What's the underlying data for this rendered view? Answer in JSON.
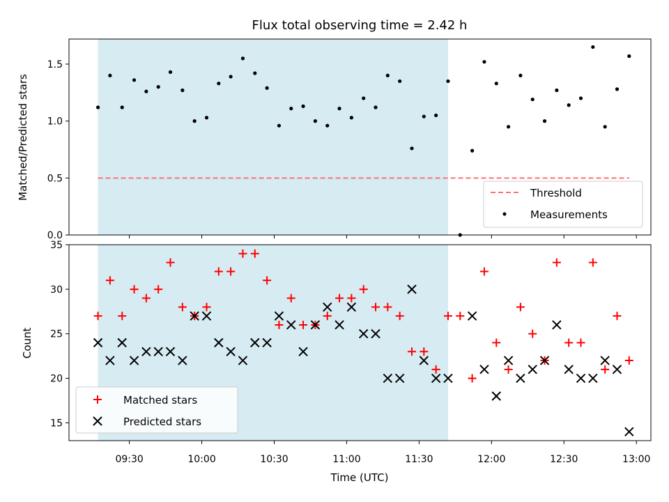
{
  "chart_data": {
    "type": "scatter",
    "title": "Flux total observing time = 2.42 h",
    "xlabel": "Time (UTC)",
    "x_ticks": [
      "09:30",
      "10:00",
      "10:30",
      "11:00",
      "11:30",
      "12:00",
      "12:30",
      "13:00"
    ],
    "top_panel": {
      "ylabel": "Matched/Predicted stars",
      "ylim": [
        0.0,
        1.72
      ],
      "y_ticks": [
        "0.0",
        "0.5",
        "1.0",
        "1.5"
      ],
      "threshold": {
        "name": "Threshold",
        "value": 0.5,
        "color": "#ff7070",
        "style": "dashed"
      },
      "series": [
        {
          "name": "Measurements",
          "marker": "dot",
          "color": "#000000",
          "x": [
            "09:17",
            "09:22",
            "09:27",
            "09:32",
            "09:37",
            "09:42",
            "09:47",
            "09:52",
            "09:57",
            "10:02",
            "10:07",
            "10:12",
            "10:17",
            "10:22",
            "10:27",
            "10:32",
            "10:37",
            "10:42",
            "10:47",
            "10:52",
            "10:57",
            "11:02",
            "11:07",
            "11:12",
            "11:17",
            "11:22",
            "11:27",
            "11:32",
            "11:37",
            "11:42",
            "11:47",
            "11:52",
            "11:57",
            "12:02",
            "12:07",
            "12:12",
            "12:17",
            "12:22",
            "12:27",
            "12:32",
            "12:37",
            "12:42",
            "12:47",
            "12:52",
            "12:57"
          ],
          "y": [
            1.12,
            1.4,
            1.12,
            1.36,
            1.26,
            1.3,
            1.43,
            1.27,
            1.0,
            1.03,
            1.33,
            1.39,
            1.55,
            1.42,
            1.29,
            0.96,
            1.11,
            1.13,
            1.0,
            0.96,
            1.11,
            1.03,
            1.2,
            1.12,
            1.4,
            1.35,
            0.76,
            1.04,
            1.05,
            1.35,
            0.0,
            0.74,
            1.52,
            1.33,
            0.95,
            1.4,
            1.19,
            1.0,
            1.27,
            1.14,
            1.2,
            1.65,
            0.95,
            1.28,
            1.57
          ]
        }
      ],
      "legend": {
        "placement": "lower-right",
        "entries": [
          "Threshold",
          "Measurements"
        ]
      }
    },
    "bottom_panel": {
      "ylabel": "Count",
      "ylim": [
        13,
        35
      ],
      "y_ticks": [
        "15",
        "20",
        "25",
        "30",
        "35"
      ],
      "series": [
        {
          "name": "Matched stars",
          "marker": "plus",
          "color": "#ff0000",
          "x": [
            "09:17",
            "09:22",
            "09:27",
            "09:32",
            "09:37",
            "09:42",
            "09:47",
            "09:52",
            "09:57",
            "10:02",
            "10:07",
            "10:12",
            "10:17",
            "10:22",
            "10:27",
            "10:32",
            "10:37",
            "10:42",
            "10:47",
            "10:52",
            "10:57",
            "11:02",
            "11:07",
            "11:12",
            "11:17",
            "11:22",
            "11:27",
            "11:32",
            "11:37",
            "11:42",
            "11:47",
            "11:52",
            "11:57",
            "12:02",
            "12:07",
            "12:12",
            "12:17",
            "12:22",
            "12:27",
            "12:32",
            "12:37",
            "12:42",
            "12:47",
            "12:52",
            "12:57"
          ],
          "y": [
            27,
            31,
            27,
            30,
            29,
            30,
            33,
            28,
            27,
            28,
            32,
            32,
            34,
            34,
            31,
            26,
            29,
            26,
            26,
            27,
            29,
            29,
            30,
            28,
            28,
            27,
            23,
            23,
            21,
            27,
            27,
            20,
            32,
            24,
            21,
            28,
            25,
            22,
            33,
            24,
            24,
            33,
            21,
            27,
            22
          ]
        },
        {
          "name": "Predicted stars",
          "marker": "x",
          "color": "#000000",
          "x": [
            "09:17",
            "09:22",
            "09:27",
            "09:32",
            "09:37",
            "09:42",
            "09:47",
            "09:52",
            "09:57",
            "10:02",
            "10:07",
            "10:12",
            "10:17",
            "10:22",
            "10:27",
            "10:32",
            "10:37",
            "10:42",
            "10:47",
            "10:52",
            "10:57",
            "11:02",
            "11:07",
            "11:12",
            "11:17",
            "11:22",
            "11:27",
            "11:32",
            "11:37",
            "11:42",
            "11:52",
            "11:57",
            "12:02",
            "12:07",
            "12:12",
            "12:17",
            "12:22",
            "12:27",
            "12:32",
            "12:37",
            "12:42",
            "12:47",
            "12:52",
            "12:57"
          ],
          "y": [
            24,
            22,
            24,
            22,
            23,
            23,
            23,
            22,
            27,
            27,
            24,
            23,
            22,
            24,
            24,
            27,
            26,
            23,
            26,
            28,
            26,
            28,
            25,
            25,
            20,
            20,
            30,
            22,
            20,
            20,
            27,
            21,
            18,
            22,
            20,
            21,
            22,
            26,
            21,
            20,
            20,
            22,
            21,
            14
          ]
        }
      ],
      "legend": {
        "placement": "lower-left",
        "entries": [
          "Matched stars",
          "Predicted stars"
        ]
      }
    },
    "observing_window": {
      "start": "09:17",
      "end": "11:42",
      "color": "#add8e6",
      "alpha": 0.5
    },
    "grid": false
  }
}
